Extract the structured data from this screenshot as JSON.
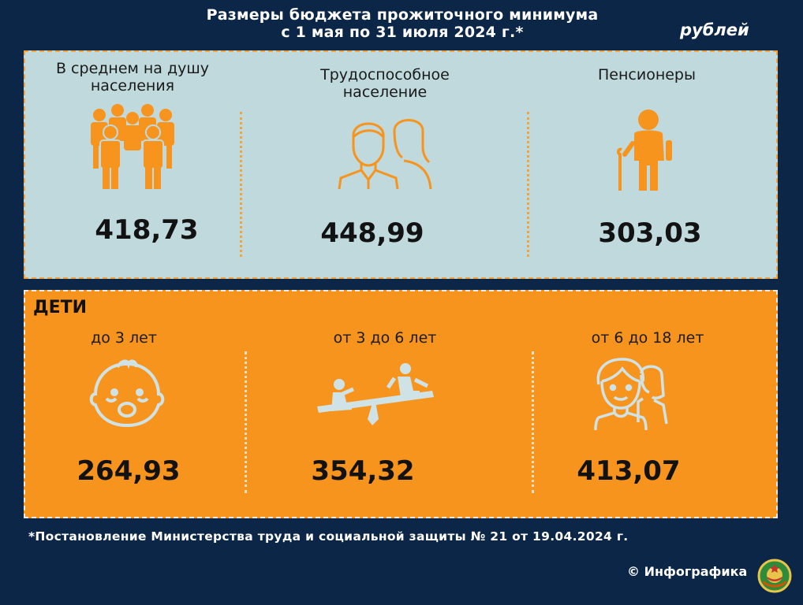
{
  "header": {
    "title_line1": "Размеры бюджета прожиточного минимума",
    "title_line2": "с 1 мая по 31 июля 2024 г.*",
    "unit": "рублей"
  },
  "adults": {
    "items": [
      {
        "label_line1": "В среднем на душу",
        "label_line2": "населения",
        "value": "418,73",
        "icon": "group-of-people-icon"
      },
      {
        "label_line1": "Трудоспособное",
        "label_line2": "население",
        "value": "448,99",
        "icon": "man-and-woman-icon"
      },
      {
        "label_line1": "Пенсионеры",
        "label_line2": "",
        "value": "303,03",
        "icon": "elderly-person-with-cane-icon"
      }
    ]
  },
  "children": {
    "title": "ДЕТИ",
    "items": [
      {
        "label": "до 3 лет",
        "value": "264,93",
        "icon": "baby-face-icon"
      },
      {
        "label": "от 3 до 6 лет",
        "value": "354,32",
        "icon": "seesaw-icon"
      },
      {
        "label": "от 6 до 18 лет",
        "value": "413,07",
        "icon": "teenagers-icon"
      }
    ]
  },
  "footer": {
    "footnote": "*Постановление Министерства труда и социальной защиты № 21 от 19.04.2024 г.",
    "brand": "© Инфографика",
    "emblem": "coat-of-arms-emblem"
  },
  "colors": {
    "background": "#0c2648",
    "adults_panel": "#bfd9dd",
    "children_panel": "#f7941d",
    "accent": "#f4a23a",
    "icon_light": "#cfe3e6"
  }
}
